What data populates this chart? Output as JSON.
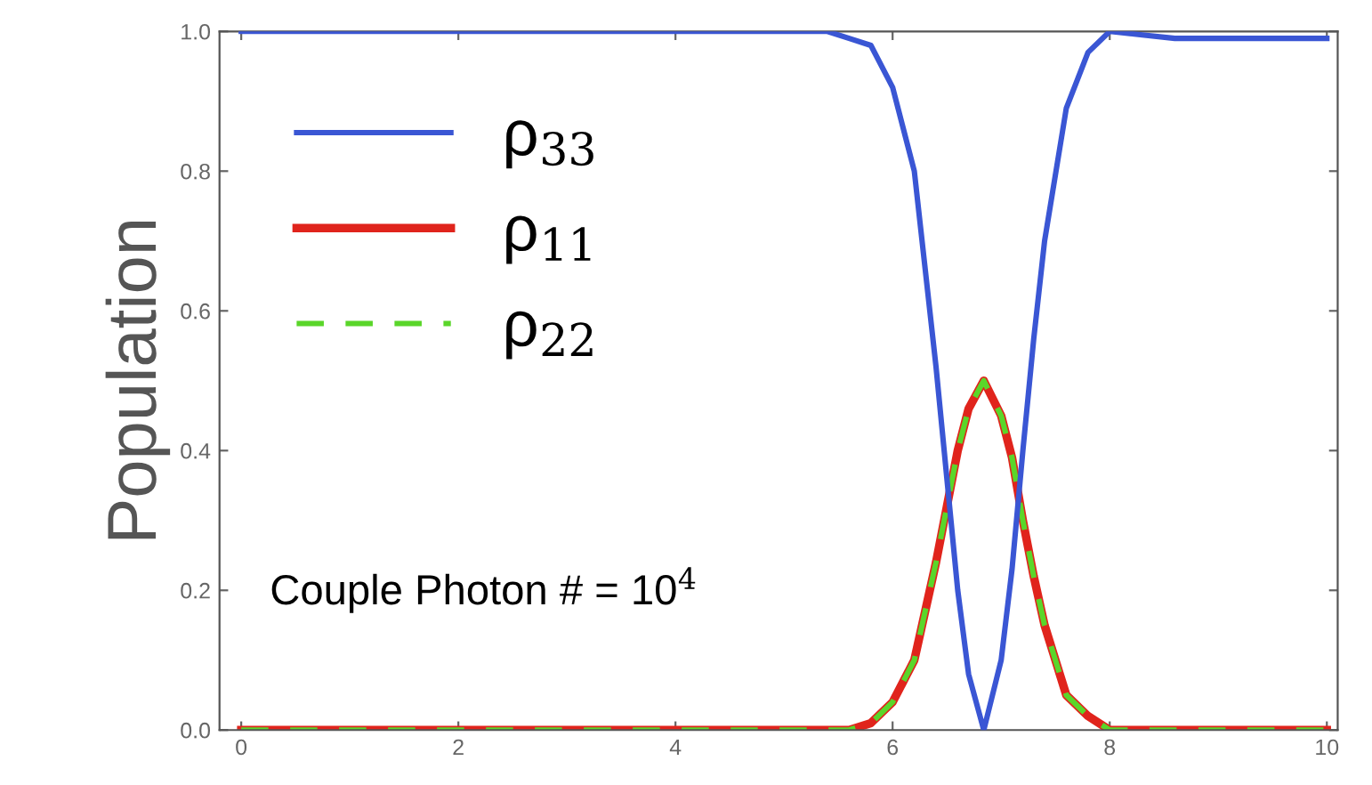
{
  "chart_data": {
    "type": "line",
    "ylabel": "Population",
    "x": [
      0,
      5,
      5.4,
      5.6,
      5.8,
      6.0,
      6.2,
      6.4,
      6.5,
      6.6,
      6.7,
      6.84,
      7.0,
      7.1,
      7.2,
      7.3,
      7.4,
      7.6,
      7.8,
      8.0,
      8.3,
      8.6,
      10
    ],
    "series": [
      {
        "name": "ρ$_{33}$",
        "color": "#3a56d4",
        "line_style": "solid",
        "values": [
          1,
          1,
          1,
          0.99,
          0.98,
          0.92,
          0.8,
          0.52,
          0.36,
          0.2,
          0.08,
          0,
          0.1,
          0.23,
          0.4,
          0.56,
          0.7,
          0.89,
          0.97,
          1.0,
          0.995,
          0.99,
          0.99
        ]
      },
      {
        "name": "ρ$_{11}$",
        "color": "#e0241c",
        "line_style": "solid",
        "values": [
          0,
          0,
          0,
          0,
          0.01,
          0.04,
          0.1,
          0.24,
          0.32,
          0.4,
          0.46,
          0.5,
          0.45,
          0.39,
          0.3,
          0.22,
          0.15,
          0.05,
          0.02,
          0,
          0,
          0,
          0
        ]
      },
      {
        "name": "ρ$_{22}$",
        "color": "#5ad62a",
        "line_style": "dashed",
        "values": [
          0,
          0,
          0,
          0,
          0.01,
          0.04,
          0.1,
          0.24,
          0.32,
          0.4,
          0.46,
          0.5,
          0.45,
          0.39,
          0.3,
          0.22,
          0.15,
          0.05,
          0.02,
          0,
          0,
          0,
          0
        ]
      }
    ],
    "xlim": [
      -0.2,
      10.1
    ],
    "ylim": [
      0,
      1
    ],
    "xticks": [
      0,
      2,
      4,
      6,
      8,
      10
    ],
    "yticks": [
      {
        "value": 0,
        "label": "0.0"
      },
      {
        "value": 0.2,
        "label": "0.2"
      },
      {
        "value": 0.4,
        "label": "0.4"
      },
      {
        "value": 0.6,
        "label": "0.6"
      },
      {
        "value": 0.8,
        "label": "0.8"
      },
      {
        "value": 1,
        "label": "1.0"
      }
    ],
    "legend": "top left",
    "grid": false,
    "annotations": [
      "Couple Photon # = 10$^{4}$"
    ]
  }
}
